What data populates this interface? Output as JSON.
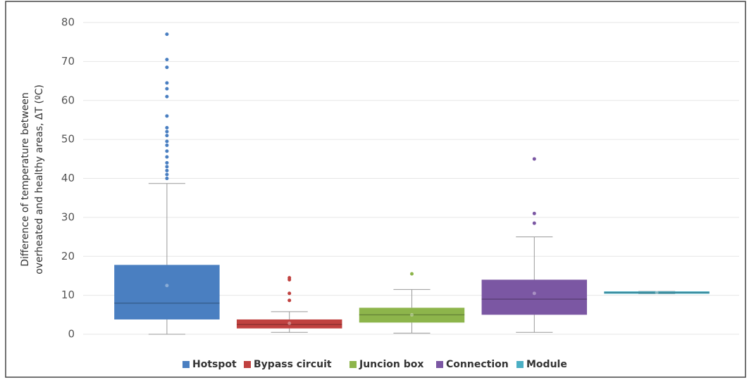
{
  "chart_data": {
    "type": "box",
    "ylabel": [
      "Difference of temperature between",
      "overheated and healthy areas, ΔT (ºC)"
    ],
    "ylim": [
      0,
      80
    ],
    "yticks": [
      0,
      10,
      20,
      30,
      40,
      50,
      60,
      70,
      80
    ],
    "grid": true,
    "legend": "bottom",
    "boxes": [
      {
        "name": "Hotspot",
        "color": "#4a7fc1",
        "min": 0,
        "q1": 3.8,
        "median": 8,
        "q3": 17.8,
        "max": 38.7,
        "mean": 12.5,
        "outliers": [
          40,
          41,
          42,
          43,
          44,
          45.5,
          47,
          48.5,
          49.5,
          51,
          52,
          53,
          56,
          61,
          63,
          64.5,
          68.5,
          70.5,
          77
        ]
      },
      {
        "name": "Bypass circuit",
        "color": "#c0413f",
        "min": 0.5,
        "q1": 1.5,
        "median": 2.5,
        "q3": 3.8,
        "max": 5.8,
        "mean": 2.8,
        "outliers": [
          8.7,
          10.5,
          14,
          14.5
        ]
      },
      {
        "name": "Juncion box",
        "color": "#8db54b",
        "min": 0.3,
        "q1": 3,
        "median": 5,
        "q3": 6.8,
        "max": 11.5,
        "mean": 5,
        "outliers": [
          15.5
        ]
      },
      {
        "name": "Connection",
        "color": "#7b57a3",
        "min": 0.5,
        "q1": 5,
        "median": 9,
        "q3": 14,
        "max": 25,
        "mean": 10.5,
        "outliers": [
          28.5,
          31,
          45
        ]
      },
      {
        "name": "Module",
        "color": "#4bafc4",
        "min": 10.4,
        "q1": 10.4,
        "median": 10.7,
        "q3": 11,
        "max": 11,
        "mean": 10.7,
        "outliers": []
      }
    ]
  }
}
